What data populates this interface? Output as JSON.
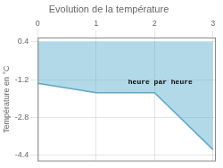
{
  "chart_data": {
    "type": "area",
    "title": "Evolution de la température",
    "ylabel": "Température en °C",
    "x": [
      0,
      1,
      2,
      3
    ],
    "values": [
      -1.35,
      -1.75,
      -1.75,
      -4.15
    ],
    "fill_to": 0.4,
    "color": "#55aacc",
    "xlim": [
      0.0,
      3.05
    ],
    "xticks": [
      0,
      1,
      2,
      3
    ],
    "ylim": [
      -4.65,
      0.58
    ],
    "yticks": [
      0.4,
      -1.2,
      -2.8,
      -4.4
    ],
    "grid": true,
    "annotations": [
      {
        "text": "heure par heure",
        "x": 1.55,
        "y": -1.3
      }
    ]
  }
}
